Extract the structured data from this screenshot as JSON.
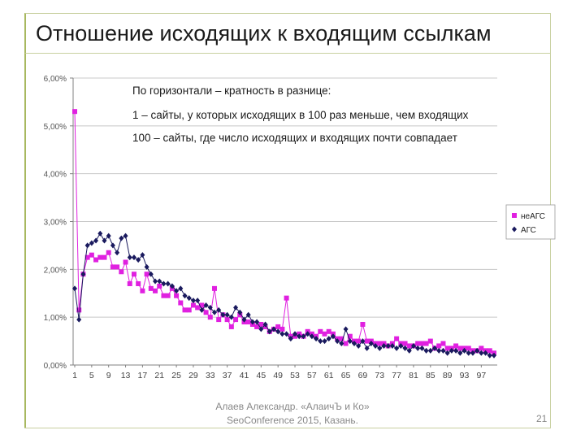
{
  "slide": {
    "title": "Отношение исходящих к входящим ссылкам",
    "footer_line1": "Алаев Александр. «АлаичЪ и Ко»",
    "footer_line2": "SeoConference 2015, Казань.",
    "page_number": "21"
  },
  "annotations": {
    "line1": "По горизонтали – кратность в разнице:",
    "line2": "1 – сайты, у которых исходящих в 100 раз меньше, чем входящих",
    "line3": "100 – сайты, где число исходящих и входящих почти совпадает"
  },
  "chart_data": {
    "type": "line",
    "title": "",
    "xlabel": "",
    "ylabel": "",
    "ylim": [
      0,
      6
    ],
    "yticks": [
      "0,00%",
      "1,00%",
      "2,00%",
      "3,00%",
      "4,00%",
      "5,00%",
      "6,00%"
    ],
    "xticks": [
      "1",
      "5",
      "9",
      "13",
      "17",
      "21",
      "25",
      "29",
      "33",
      "37",
      "41",
      "45",
      "49",
      "53",
      "57",
      "61",
      "65",
      "69",
      "73",
      "77",
      "81",
      "85",
      "89",
      "93",
      "97"
    ],
    "x": [
      1,
      2,
      3,
      4,
      5,
      6,
      7,
      8,
      9,
      10,
      11,
      12,
      13,
      14,
      15,
      16,
      17,
      18,
      19,
      20,
      21,
      22,
      23,
      24,
      25,
      26,
      27,
      28,
      29,
      30,
      31,
      32,
      33,
      34,
      35,
      36,
      37,
      38,
      39,
      40,
      41,
      42,
      43,
      44,
      45,
      46,
      47,
      48,
      49,
      50,
      51,
      52,
      53,
      54,
      55,
      56,
      57,
      58,
      59,
      60,
      61,
      62,
      63,
      64,
      65,
      66,
      67,
      68,
      69,
      70,
      71,
      72,
      73,
      74,
      75,
      76,
      77,
      78,
      79,
      80,
      81,
      82,
      83,
      84,
      85,
      86,
      87,
      88,
      89,
      90,
      91,
      92,
      93,
      94,
      95,
      96,
      97,
      98,
      99,
      100
    ],
    "legend_position": "right",
    "colors": {
      "neags": "#e020e0",
      "ags": "#1a1a5e",
      "grid": "#c8c8c8",
      "axis": "#808080"
    },
    "series": [
      {
        "name": "неАГС",
        "marker": "square",
        "values": [
          5.3,
          1.15,
          1.9,
          2.25,
          2.3,
          2.2,
          2.25,
          2.25,
          2.35,
          2.05,
          2.05,
          1.95,
          2.15,
          1.7,
          1.9,
          1.7,
          1.55,
          1.9,
          1.6,
          1.55,
          1.65,
          1.45,
          1.45,
          1.6,
          1.45,
          1.3,
          1.15,
          1.15,
          1.25,
          1.2,
          1.25,
          1.1,
          1.0,
          1.6,
          0.95,
          1.05,
          0.95,
          0.8,
          0.95,
          1.05,
          0.9,
          0.9,
          0.85,
          0.8,
          0.85,
          0.8,
          0.7,
          0.75,
          0.8,
          0.75,
          1.4,
          0.6,
          0.6,
          0.65,
          0.6,
          0.7,
          0.65,
          0.6,
          0.7,
          0.65,
          0.7,
          0.65,
          0.55,
          0.55,
          0.45,
          0.6,
          0.5,
          0.5,
          0.85,
          0.5,
          0.5,
          0.45,
          0.45,
          0.45,
          0.4,
          0.45,
          0.55,
          0.45,
          0.45,
          0.4,
          0.4,
          0.45,
          0.45,
          0.45,
          0.5,
          0.35,
          0.4,
          0.45,
          0.35,
          0.35,
          0.4,
          0.35,
          0.35,
          0.35,
          0.3,
          0.3,
          0.35,
          0.3,
          0.3,
          0.25
        ]
      },
      {
        "name": "АГС",
        "marker": "diamond",
        "values": [
          1.6,
          0.95,
          1.9,
          2.5,
          2.55,
          2.6,
          2.75,
          2.6,
          2.7,
          2.5,
          2.35,
          2.65,
          2.7,
          2.25,
          2.25,
          2.2,
          2.3,
          2.05,
          1.9,
          1.75,
          1.75,
          1.7,
          1.7,
          1.65,
          1.55,
          1.6,
          1.45,
          1.4,
          1.35,
          1.35,
          1.15,
          1.25,
          1.2,
          1.1,
          1.15,
          1.05,
          1.05,
          1.0,
          1.2,
          1.1,
          0.95,
          1.05,
          0.9,
          0.9,
          0.75,
          0.85,
          0.7,
          0.75,
          0.7,
          0.65,
          0.65,
          0.55,
          0.65,
          0.6,
          0.6,
          0.65,
          0.6,
          0.55,
          0.5,
          0.5,
          0.55,
          0.6,
          0.5,
          0.45,
          0.75,
          0.5,
          0.45,
          0.4,
          0.5,
          0.35,
          0.45,
          0.4,
          0.35,
          0.4,
          0.4,
          0.4,
          0.35,
          0.4,
          0.35,
          0.3,
          0.4,
          0.35,
          0.35,
          0.3,
          0.3,
          0.35,
          0.3,
          0.3,
          0.25,
          0.3,
          0.3,
          0.25,
          0.3,
          0.25,
          0.25,
          0.3,
          0.25,
          0.25,
          0.2,
          0.2
        ]
      }
    ]
  }
}
